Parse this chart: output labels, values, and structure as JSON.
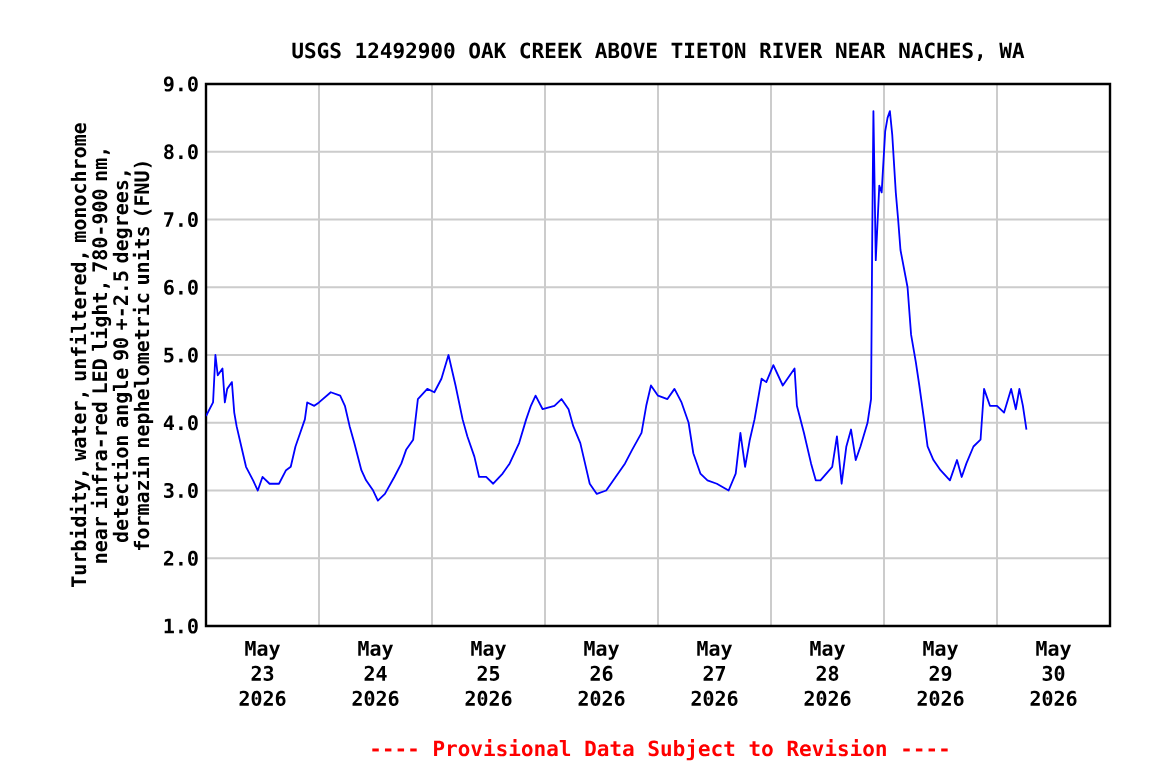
{
  "chart_data": {
    "type": "line",
    "title": "USGS 12492900 OAK CREEK ABOVE TIETON RIVER NEAR NACHES, WA",
    "ylabel": "Turbidity, water, unfiltered, monochrome near infra-red LED light, 780-900 nm, detection angle 90 +-2.5 degrees, formazin nephelometric units (FNU)",
    "annotations": [
      "---- Provisional Data Subject to Revision ----"
    ],
    "xlim": [
      "2026-05-23",
      "2026-05-31"
    ],
    "xticks": [
      {
        "value": "2026-05-23T12:00",
        "label": "May 23 2026"
      },
      {
        "value": "2026-05-24T12:00",
        "label": "May 24 2026"
      },
      {
        "value": "2026-05-25T12:00",
        "label": "May 25 2026"
      },
      {
        "value": "2026-05-26T12:00",
        "label": "May 26 2026"
      },
      {
        "value": "2026-05-27T12:00",
        "label": "May 27 2026"
      },
      {
        "value": "2026-05-28T12:00",
        "label": "May 28 2026"
      },
      {
        "value": "2026-05-29T12:00",
        "label": "May 29 2026"
      },
      {
        "value": "2026-05-30T12:00",
        "label": "May 30 2026"
      },
      {
        "value": "2026-05-24",
        "label": null
      },
      {
        "value": "2026-05-25",
        "label": null
      },
      {
        "value": "2026-05-26",
        "label": null
      },
      {
        "value": "2026-05-27",
        "label": null
      },
      {
        "value": "2026-05-28",
        "label": null
      },
      {
        "value": "2026-05-29",
        "label": null
      },
      {
        "value": "2026-05-30",
        "label": null
      }
    ],
    "ylim": [
      1,
      9
    ],
    "yticks": [
      {
        "value": 1,
        "label": "1.0"
      },
      {
        "value": 2,
        "label": "2.0"
      },
      {
        "value": 3,
        "label": "3.0"
      },
      {
        "value": 4,
        "label": "4.0"
      },
      {
        "value": 5,
        "label": "5.0"
      },
      {
        "value": 6,
        "label": "6.0"
      },
      {
        "value": 7,
        "label": "7.0"
      },
      {
        "value": 8,
        "label": "8.0"
      },
      {
        "value": 9,
        "label": "9.0"
      }
    ],
    "grid": true,
    "marker": "none",
    "line_style": "solid",
    "series": [
      {
        "color": "#0000ff",
        "x": [
          "2026-05-23T00:00",
          "2026-05-23T01:30",
          "2026-05-23T02:00",
          "2026-05-23T02:30",
          "2026-05-23T03:30",
          "2026-05-23T04:00",
          "2026-05-23T04:30",
          "2026-05-23T05:30",
          "2026-05-23T06:00",
          "2026-05-23T06:30",
          "2026-05-23T07:30",
          "2026-05-23T08:30",
          "2026-05-23T10:00",
          "2026-05-23T11:00",
          "2026-05-23T12:00",
          "2026-05-23T13:30",
          "2026-05-23T15:30",
          "2026-05-23T17:00",
          "2026-05-23T18:00",
          "2026-05-23T19:00",
          "2026-05-23T20:00",
          "2026-05-23T21:00",
          "2026-05-23T21:30",
          "2026-05-23T23:00",
          "2026-05-24T00:00",
          "2026-05-24T02:30",
          "2026-05-24T04:30",
          "2026-05-24T05:30",
          "2026-05-24T06:30",
          "2026-05-24T07:30",
          "2026-05-24T09:00",
          "2026-05-24T10:00",
          "2026-05-24T11:30",
          "2026-05-24T12:30",
          "2026-05-24T14:00",
          "2026-05-24T16:00",
          "2026-05-24T17:30",
          "2026-05-24T18:30",
          "2026-05-24T20:00",
          "2026-05-24T21:00",
          "2026-05-24T23:00",
          "2026-05-25T00:30",
          "2026-05-25T02:00",
          "2026-05-25T03:30",
          "2026-05-25T05:00",
          "2026-05-25T06:30",
          "2026-05-25T07:30",
          "2026-05-25T09:00",
          "2026-05-25T10:00",
          "2026-05-25T11:30",
          "2026-05-25T13:00",
          "2026-05-25T15:00",
          "2026-05-25T16:30",
          "2026-05-25T18:30",
          "2026-05-25T20:00",
          "2026-05-25T21:00",
          "2026-05-25T22:00",
          "2026-05-25T23:30",
          "2026-05-26T02:00",
          "2026-05-26T03:30",
          "2026-05-26T05:00",
          "2026-05-26T06:00",
          "2026-05-26T07:30",
          "2026-05-26T08:30",
          "2026-05-26T09:30",
          "2026-05-26T11:00",
          "2026-05-26T13:00",
          "2026-05-26T15:00",
          "2026-05-26T17:00",
          "2026-05-26T18:30",
          "2026-05-26T20:30",
          "2026-05-26T21:30",
          "2026-05-26T22:30",
          "2026-05-27T00:00",
          "2026-05-27T02:00",
          "2026-05-27T03:30",
          "2026-05-27T05:00",
          "2026-05-27T06:30",
          "2026-05-27T07:30",
          "2026-05-27T09:00",
          "2026-05-27T10:30",
          "2026-05-27T12:30",
          "2026-05-27T15:00",
          "2026-05-27T16:30",
          "2026-05-27T17:30",
          "2026-05-27T18:30",
          "2026-05-27T19:30",
          "2026-05-27T20:30",
          "2026-05-27T22:00",
          "2026-05-27T23:00",
          "2026-05-28T00:30",
          "2026-05-28T02:30",
          "2026-05-28T05:00",
          "2026-05-28T05:30",
          "2026-05-28T07:00",
          "2026-05-28T08:30",
          "2026-05-28T09:30",
          "2026-05-28T10:30",
          "2026-05-28T13:00",
          "2026-05-28T14:00",
          "2026-05-28T15:00",
          "2026-05-28T16:00",
          "2026-05-28T17:00",
          "2026-05-28T18:00",
          "2026-05-28T19:00",
          "2026-05-28T20:30",
          "2026-05-28T21:15",
          "2026-05-28T21:30",
          "2026-05-28T21:45",
          "2026-05-28T22:15",
          "2026-05-28T23:00",
          "2026-05-28T23:30",
          "2026-05-29T00:15",
          "2026-05-29T00:45",
          "2026-05-29T01:15",
          "2026-05-29T01:45",
          "2026-05-29T02:30",
          "2026-05-29T03:00",
          "2026-05-29T03:30",
          "2026-05-29T05:00",
          "2026-05-29T05:45",
          "2026-05-29T06:45",
          "2026-05-29T07:30",
          "2026-05-29T08:30",
          "2026-05-29T09:15",
          "2026-05-29T10:30",
          "2026-05-29T12:00",
          "2026-05-29T14:00",
          "2026-05-29T15:30",
          "2026-05-29T16:30",
          "2026-05-29T17:30",
          "2026-05-29T19:00",
          "2026-05-29T20:30",
          "2026-05-29T21:15",
          "2026-05-29T22:30",
          "2026-05-30T00:00",
          "2026-05-30T01:30",
          "2026-05-30T03:00",
          "2026-05-30T04:00",
          "2026-05-30T04:45",
          "2026-05-30T05:30",
          "2026-05-30T06:15"
        ],
        "values": [
          4.1,
          4.3,
          5.0,
          4.7,
          4.8,
          4.3,
          4.5,
          4.6,
          4.15,
          3.95,
          3.65,
          3.35,
          3.15,
          3.0,
          3.2,
          3.1,
          3.1,
          3.3,
          3.35,
          3.65,
          3.85,
          4.05,
          4.3,
          4.25,
          4.3,
          4.45,
          4.4,
          4.25,
          3.95,
          3.7,
          3.3,
          3.15,
          3.0,
          2.85,
          2.95,
          3.2,
          3.4,
          3.6,
          3.75,
          4.35,
          4.5,
          4.45,
          4.65,
          5.0,
          4.55,
          4.05,
          3.8,
          3.5,
          3.2,
          3.2,
          3.1,
          3.25,
          3.4,
          3.7,
          4.05,
          4.25,
          4.4,
          4.2,
          4.25,
          4.35,
          4.2,
          3.95,
          3.7,
          3.4,
          3.1,
          2.95,
          3.0,
          3.2,
          3.4,
          3.6,
          3.85,
          4.25,
          4.55,
          4.4,
          4.35,
          4.5,
          4.3,
          4.0,
          3.55,
          3.25,
          3.15,
          3.1,
          3.0,
          3.25,
          3.85,
          3.35,
          3.75,
          4.05,
          4.65,
          4.6,
          4.85,
          4.55,
          4.8,
          4.25,
          3.85,
          3.4,
          3.15,
          3.15,
          3.35,
          3.8,
          3.1,
          3.65,
          3.9,
          3.45,
          3.65,
          4.0,
          4.35,
          6.75,
          8.6,
          6.4,
          7.5,
          7.4,
          8.3,
          8.5,
          8.6,
          8.25,
          7.4,
          7.0,
          6.55,
          6.0,
          5.3,
          4.9,
          4.55,
          4.05,
          3.65,
          3.45,
          3.3,
          3.15,
          3.45,
          3.2,
          3.4,
          3.65,
          3.75,
          4.5,
          4.25,
          4.25,
          4.15,
          4.5,
          4.2,
          4.5,
          4.25,
          3.9
        ]
      }
    ]
  }
}
